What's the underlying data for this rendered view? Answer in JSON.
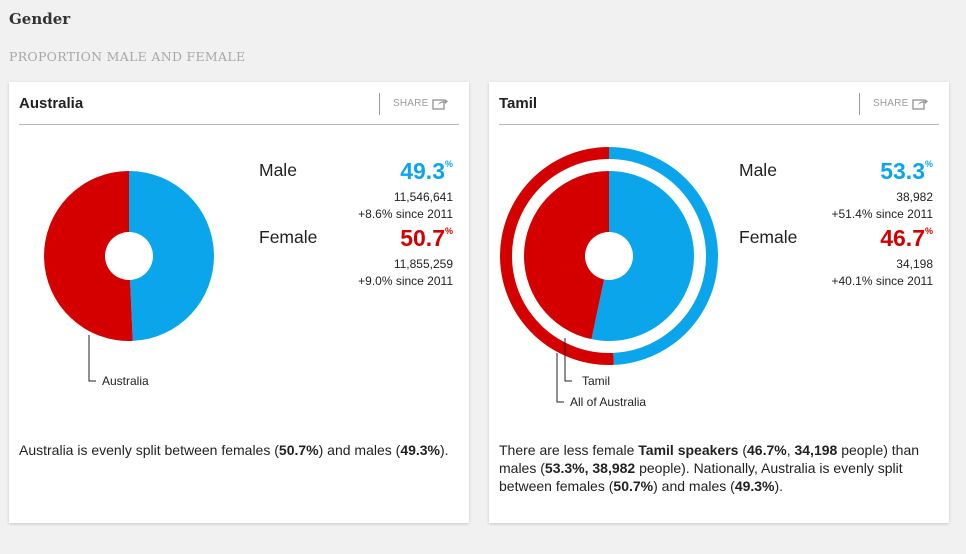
{
  "section": {
    "title": "Gender",
    "subtitle": "PROPORTION MALE AND FEMALE"
  },
  "colors": {
    "male": "#0ba5ec",
    "female": "#d40000"
  },
  "cards": [
    {
      "title": "Australia",
      "share_label": "SHARE",
      "male_label": "Male",
      "male_pct": "49.3",
      "male_count": "11,546,641",
      "male_change": "+8.6% since 2011",
      "female_label": "Female",
      "female_pct": "50.7",
      "female_count": "11,855,259",
      "female_change": "+9.0% since 2011",
      "legend": [
        "Australia"
      ],
      "description": {
        "p1": "Australia is evenly split between females (",
        "b1": "50.7%",
        "p2": ") and males (",
        "b2": "49.3%",
        "p3": ")."
      }
    },
    {
      "title": "Tamil",
      "share_label": "SHARE",
      "male_label": "Male",
      "male_pct": "53.3",
      "male_count": "38,982",
      "male_change": "+51.4% since 2011",
      "female_label": "Female",
      "female_pct": "46.7",
      "female_count": "34,198",
      "female_change": "+40.1% since 2011",
      "legend": [
        "Tamil",
        "All of Australia"
      ],
      "description": {
        "p1": "There are less female ",
        "b1": "Tamil speakers",
        "p2": " (",
        "b2": "46.7%",
        "p3": ", ",
        "b3": "34,198",
        "p4": " people) than males (",
        "b4": "53.3%, 38,982",
        "p5": " people). Nationally, Australia is evenly split between females (",
        "b5": "50.7%",
        "p6": ") and males (",
        "b6": "49.3%",
        "p7": ")."
      }
    }
  ],
  "chart_data": [
    {
      "type": "pie",
      "title": "Australia",
      "categories": [
        "Male",
        "Female"
      ],
      "series": [
        {
          "name": "Australia",
          "values": [
            49.3,
            50.7
          ]
        }
      ]
    },
    {
      "type": "pie",
      "title": "Tamil",
      "categories": [
        "Male",
        "Female"
      ],
      "series": [
        {
          "name": "Tamil",
          "values": [
            53.3,
            46.7
          ]
        },
        {
          "name": "All of Australia",
          "values": [
            49.3,
            50.7
          ]
        }
      ]
    }
  ]
}
